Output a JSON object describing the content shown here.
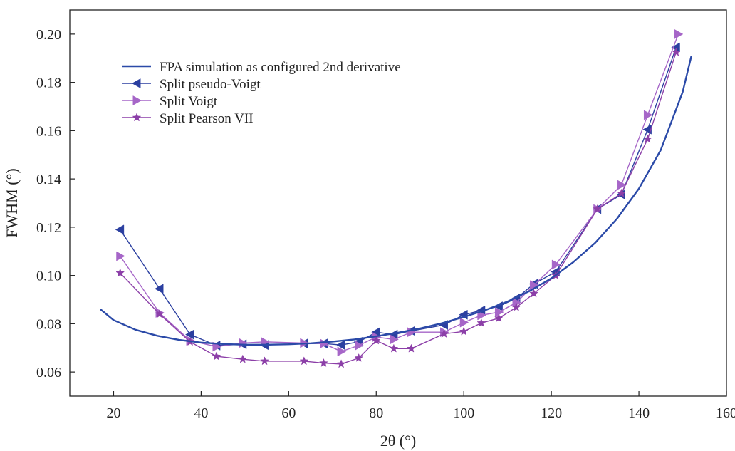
{
  "chart_data": {
    "type": "line",
    "xlabel": "2θ (°)",
    "ylabel": "FWHM (°)",
    "xlim": [
      10,
      160
    ],
    "ylim": [
      0.05,
      0.21
    ],
    "xticks": [
      20,
      40,
      60,
      80,
      100,
      120,
      140,
      160
    ],
    "yticks": [
      0.06,
      0.08,
      0.1,
      0.12,
      0.14,
      0.16,
      0.18,
      0.2
    ],
    "ytick_labels": [
      "0.06",
      "0.08",
      "0.10",
      "0.12",
      "0.14",
      "0.16",
      "0.18",
      "0.20"
    ],
    "grid": false,
    "legend_position": "top-left",
    "series": [
      {
        "name": "FPA simulation as configured 2nd derivative",
        "style": "line",
        "color": "#2b4aa8",
        "x": [
          17,
          20,
          25,
          30,
          35,
          40,
          45,
          50,
          55,
          60,
          65,
          70,
          75,
          80,
          85,
          90,
          95,
          100,
          105,
          110,
          115,
          120,
          125,
          130,
          135,
          140,
          145,
          150,
          152
        ],
        "y": [
          0.086,
          0.0815,
          0.0775,
          0.075,
          0.0733,
          0.0722,
          0.0716,
          0.0713,
          0.0713,
          0.0715,
          0.0719,
          0.0726,
          0.0735,
          0.0748,
          0.0763,
          0.078,
          0.0802,
          0.0828,
          0.0857,
          0.0892,
          0.0935,
          0.0988,
          0.1055,
          0.1135,
          0.1235,
          0.136,
          0.152,
          0.176,
          0.191
        ]
      },
      {
        "name": "Split pseudo-Voigt",
        "style": "line+marker",
        "marker": "triangle-left",
        "color": "#2b3fa0",
        "x": [
          21.5,
          30.5,
          37.5,
          43.5,
          49.5,
          54.5,
          63.5,
          68,
          72,
          76,
          80,
          84,
          88,
          95.5,
          100,
          104,
          108,
          112,
          116,
          121,
          130.5,
          136,
          142,
          148.5
        ],
        "y": [
          0.119,
          0.0945,
          0.0755,
          0.071,
          0.0715,
          0.0712,
          0.0718,
          0.0718,
          0.0712,
          0.0725,
          0.0765,
          0.0755,
          0.077,
          0.0795,
          0.0837,
          0.0855,
          0.0872,
          0.0905,
          0.0965,
          0.1015,
          0.1275,
          0.1335,
          0.1605,
          0.1945
        ]
      },
      {
        "name": "Split Voigt",
        "style": "line+marker",
        "marker": "triangle-right",
        "color": "#a666c8",
        "x": [
          21.5,
          30.5,
          37.5,
          43.5,
          49.5,
          54.5,
          63.5,
          68,
          72,
          76,
          80,
          84,
          88,
          95.5,
          100,
          104,
          108,
          112,
          116,
          121,
          130.5,
          136,
          142,
          149
        ],
        "y": [
          0.108,
          0.0845,
          0.073,
          0.0705,
          0.072,
          0.0725,
          0.072,
          0.0718,
          0.0685,
          0.071,
          0.0745,
          0.0735,
          0.0765,
          0.0765,
          0.0805,
          0.0835,
          0.0848,
          0.0888,
          0.096,
          0.1045,
          0.1275,
          0.1375,
          0.1665,
          0.2
        ]
      },
      {
        "name": "Split Pearson VII",
        "style": "line+marker",
        "marker": "star",
        "color": "#8c3fa8",
        "x": [
          21.5,
          30.5,
          37.5,
          43.5,
          49.5,
          54.5,
          63.5,
          68,
          72,
          76,
          80,
          84,
          88,
          95.5,
          100,
          104,
          108,
          112,
          116,
          121,
          130.5,
          136,
          142,
          148.5
        ],
        "y": [
          0.101,
          0.084,
          0.0725,
          0.0665,
          0.0653,
          0.0645,
          0.0645,
          0.0637,
          0.0633,
          0.0658,
          0.073,
          0.0697,
          0.0697,
          0.0758,
          0.0768,
          0.0803,
          0.0823,
          0.0868,
          0.0925,
          0.1,
          0.1275,
          0.134,
          0.1565,
          0.1925
        ]
      }
    ]
  }
}
